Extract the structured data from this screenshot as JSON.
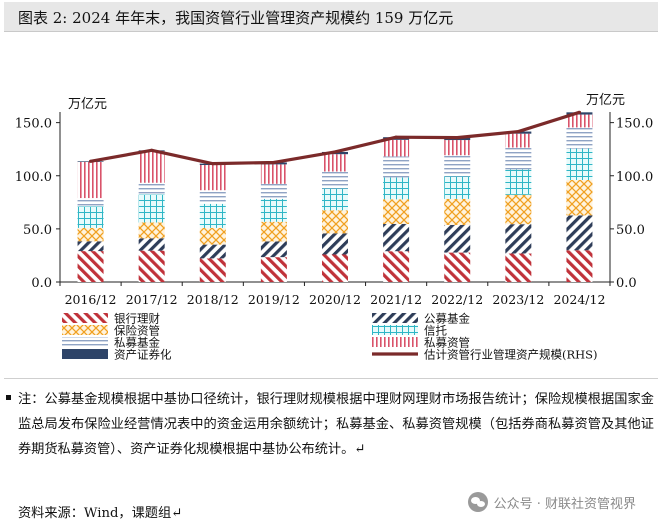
{
  "header": {
    "title": "图表 2:  2024 年年末，我国资管行业管理资产规模约 159 万亿元",
    "mark": "↵"
  },
  "chart_data": {
    "type": "stacked-bar+line",
    "categories": [
      "2016/12",
      "2017/12",
      "2018/12",
      "2019/12",
      "2020/12",
      "2021/12",
      "2022/12",
      "2023/12",
      "2024/12"
    ],
    "ylabel_left": "万亿元",
    "ylabel_right": "万亿元",
    "ylim": [
      0,
      160
    ],
    "yticks": [
      0,
      50,
      100,
      150
    ],
    "ytick_labels": [
      "0.0",
      "50.0",
      "100.0",
      "150.0"
    ],
    "series": [
      {
        "name": "银行理财",
        "pattern": "diag-red",
        "values": [
          29.1,
          29.5,
          22.2,
          23.4,
          25.9,
          29.0,
          27.7,
          26.8,
          29.9
        ]
      },
      {
        "name": "公募基金",
        "pattern": "diag-navy",
        "values": [
          9.2,
          11.6,
          13.0,
          14.8,
          19.9,
          25.6,
          26.0,
          27.6,
          32.8
        ]
      },
      {
        "name": "保险资管",
        "pattern": "cross-orange",
        "values": [
          12.6,
          14.9,
          15.7,
          18.5,
          21.7,
          23.2,
          24.5,
          27.7,
          33.3
        ]
      },
      {
        "name": "信托",
        "pattern": "grid-cyan",
        "values": [
          20.2,
          26.3,
          22.7,
          21.6,
          20.5,
          20.6,
          21.1,
          23.9,
          29.6
        ]
      },
      {
        "name": "私募基金",
        "pattern": "hlines-blue",
        "values": [
          7.9,
          11.1,
          12.8,
          14.1,
          16.0,
          19.8,
          20.0,
          20.6,
          19.9
        ]
      },
      {
        "name": "私募资管",
        "pattern": "vlines-pink",
        "values": [
          34.0,
          29.6,
          23.7,
          18.3,
          16.3,
          15.6,
          14.3,
          13.0,
          12.1
        ]
      },
      {
        "name": "资产证券化",
        "pattern": "solid-navy",
        "values": [
          0.6,
          0.9,
          1.3,
          1.8,
          2.1,
          2.5,
          2.3,
          2.0,
          2.1
        ]
      }
    ],
    "line": {
      "name": "估计资管行业管理资产规模(RHS)",
      "color": "#7b2a2a",
      "values": [
        113.6,
        123.9,
        111.4,
        112.5,
        122.4,
        136.3,
        135.9,
        141.6,
        159.7
      ]
    },
    "legend": {
      "position": "bottom",
      "columns": 2
    }
  },
  "notes": {
    "text": "注：公募基金规模根据中基协口径统计，银行理财规模根据中理财网理财市场报告统计；保险规模根据国家金监总局发布保险业经营情况表中的资金运用余额统计；私募基金、私募资管规模（包括券商私募资管及其他证券期货私募资管）、资产证券化规模根据中基协公布统计。↵",
    "source": "资料来源：Wind，课题组↵"
  },
  "watermark": {
    "text": "公众号 · 财联社资管视界"
  }
}
